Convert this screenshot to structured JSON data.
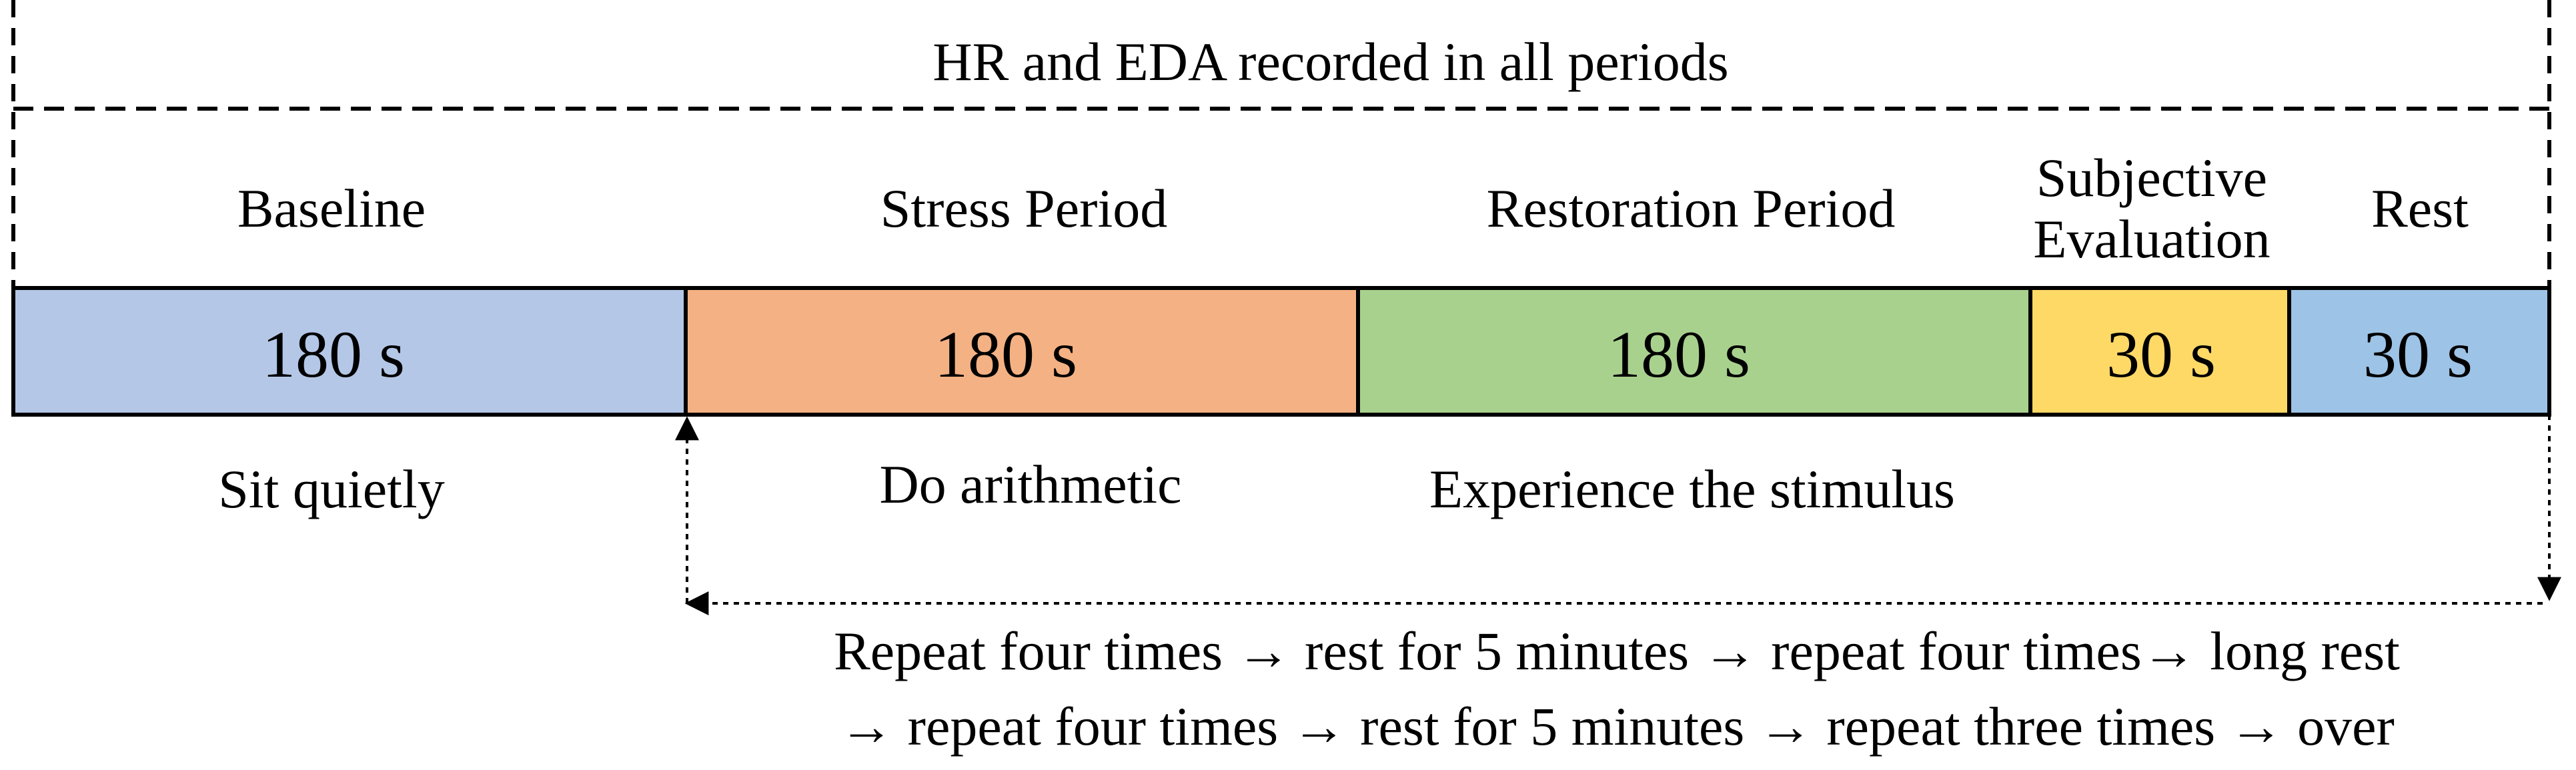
{
  "header": {
    "text": "HR and EDA recorded in all periods"
  },
  "periods": [
    {
      "id": "baseline",
      "label": "Baseline",
      "duration": "180 s",
      "activity": "Sit quietly",
      "color": "#b4c7e7"
    },
    {
      "id": "stress",
      "label": "Stress Period",
      "duration": "180 s",
      "activity": "Do arithmetic",
      "color": "#f4b183"
    },
    {
      "id": "restoration",
      "label": "Restoration Period",
      "duration": "180 s",
      "activity": "Experience the stimulus",
      "color": "#a9d18e"
    },
    {
      "id": "evaluation",
      "label": "Subjective\nEvaluation",
      "duration": "30 s",
      "activity": "",
      "color": "#ffd966"
    },
    {
      "id": "rest",
      "label": "Rest",
      "duration": "30 s",
      "activity": "",
      "color": "#9dc3e6"
    }
  ],
  "repeat_note": {
    "line1": "Repeat four times → rest for 5 minutes → repeat four times→ long rest",
    "line2": "→ repeat four times → rest for 5 minutes → repeat three times → over"
  }
}
